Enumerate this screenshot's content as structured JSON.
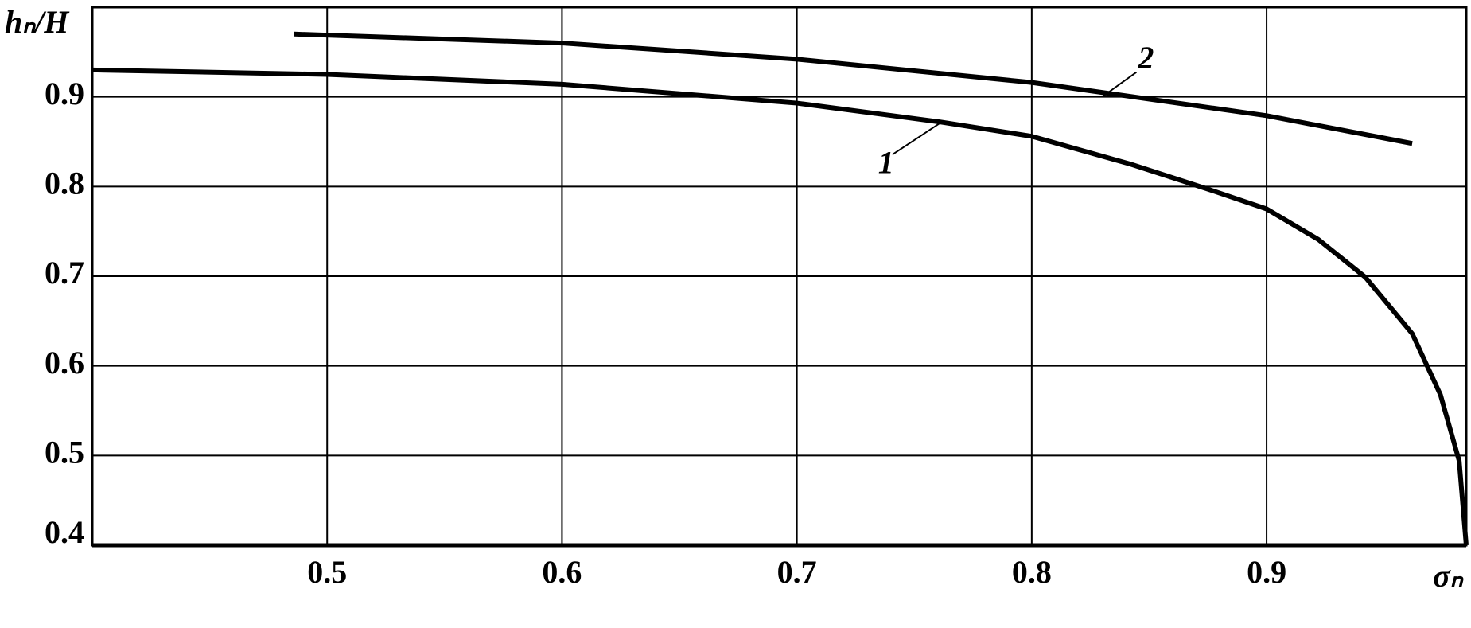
{
  "chart_data": {
    "type": "line",
    "x_label": "σₙ",
    "y_label": "hₙ/H",
    "xlim": [
      0.4,
      0.985
    ],
    "ylim": [
      0.4,
      1.0
    ],
    "xticks": [
      0.5,
      0.6,
      0.7,
      0.8,
      0.9
    ],
    "yticks": [
      0.4,
      0.5,
      0.6,
      0.7,
      0.8,
      0.9
    ],
    "grid": true,
    "series": [
      {
        "name": "1",
        "color": "#000000",
        "x": [
          0.4,
          0.5,
          0.6,
          0.7,
          0.761,
          0.8,
          0.842,
          0.874,
          0.9,
          0.922,
          0.942,
          0.962,
          0.974,
          0.982,
          0.985
        ],
        "values": [
          0.93,
          0.925,
          0.914,
          0.893,
          0.872,
          0.856,
          0.825,
          0.798,
          0.775,
          0.741,
          0.699,
          0.636,
          0.568,
          0.494,
          0.4
        ]
      },
      {
        "name": "2",
        "color": "#000000",
        "x": [
          0.486,
          0.6,
          0.7,
          0.8,
          0.9,
          0.962
        ],
        "values": [
          0.97,
          0.96,
          0.942,
          0.916,
          0.879,
          0.848
        ]
      }
    ]
  }
}
